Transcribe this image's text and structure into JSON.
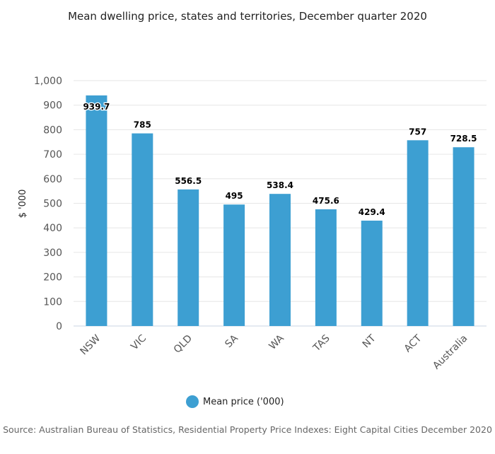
{
  "chart_data": {
    "type": "bar",
    "title": "Mean dwelling price, states and territories, December quarter 2020",
    "ylabel": "$ '000",
    "xlabel": "",
    "categories": [
      "NSW",
      "VIC",
      "QLD",
      "SA",
      "WA",
      "TAS",
      "NT",
      "ACT",
      "Australia"
    ],
    "series": [
      {
        "name": "Mean price ('000)",
        "values": [
          939.7,
          785,
          556.5,
          495,
          538.4,
          475.6,
          429.4,
          757,
          728.5
        ],
        "data_labels": [
          "939.7",
          "785",
          "556.5",
          "495",
          "538.4",
          "475.6",
          "429.4",
          "757",
          "728.5"
        ]
      }
    ],
    "ylim": [
      0,
      1000
    ],
    "yticks": [
      0,
      100,
      200,
      300,
      400,
      500,
      600,
      700,
      800,
      900,
      1000
    ],
    "ytick_labels": [
      "0",
      "100",
      "200",
      "300",
      "400",
      "500",
      "600",
      "700",
      "800",
      "900",
      "1,000"
    ],
    "grid": true,
    "legend": "bottom",
    "bar_color": "#3d9fd2"
  },
  "source": "Source: Australian Bureau of Statistics, Residential Property Price Indexes: Eight Capital Cities December 2020"
}
